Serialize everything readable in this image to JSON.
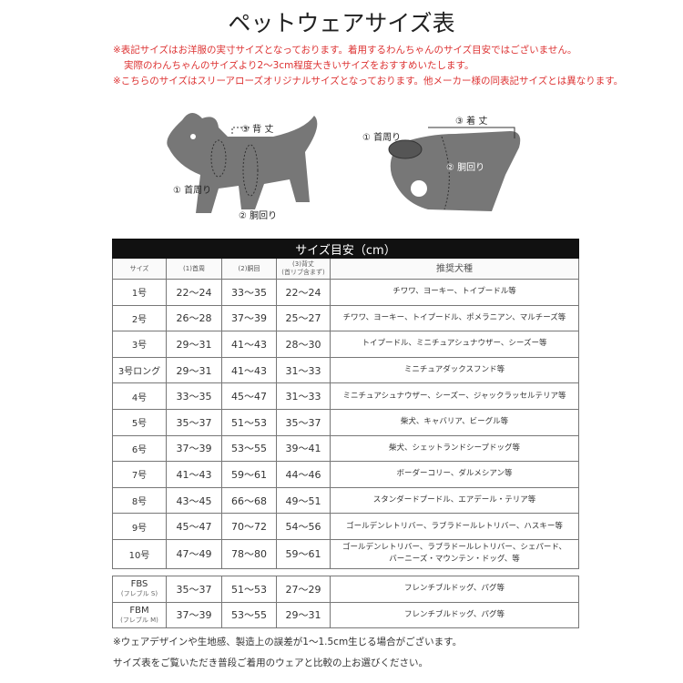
{
  "title": "ペットウェアサイズ表",
  "notes": [
    "※表記サイズはお洋服の実寸サイズとなっております。着用するわんちゃんのサイズ目安ではございません。",
    "実際のわんちゃんのサイズより2～3cm程度大きいサイズをおすすめいたします。",
    "※こちらのサイズはスリーアローズオリジナルサイズとなっております。他メーカー様の同表記サイズとは異なります。"
  ],
  "diagram": {
    "dog": {
      "back": "③ 背 丈",
      "neck": "① 首周り",
      "body": "② 胴回り"
    },
    "wear": {
      "length": "③ 着 丈",
      "neck": "① 首周り",
      "body": "② 胴回り"
    }
  },
  "table": {
    "caption": "サイズ目安（cm）",
    "headers": [
      "サイズ",
      "(1)首周",
      "(2)胴回",
      "(3)背丈",
      "推奨犬種"
    ],
    "header_sub": "(首リブ含まず)",
    "rows": [
      {
        "size": "1号",
        "neck": "22～24",
        "body": "33～35",
        "back": "22～24",
        "breeds": "チワワ、ヨーキー、トイプードル等"
      },
      {
        "size": "2号",
        "neck": "26～28",
        "body": "37～39",
        "back": "25～27",
        "breeds": "チワワ、ヨーキー、トイプードル、ポメラニアン、マルチーズ等"
      },
      {
        "size": "3号",
        "neck": "29～31",
        "body": "41～43",
        "back": "28～30",
        "breeds": "トイプードル、ミニチュアシュナウザー、シーズー等"
      },
      {
        "size": "3号ロング",
        "neck": "29～31",
        "body": "41～43",
        "back": "31～33",
        "breeds": "ミニチュアダックスフンド等"
      },
      {
        "size": "4号",
        "neck": "33～35",
        "body": "45～47",
        "back": "31～33",
        "breeds": "ミニチュアシュナウザー、シーズー、ジャックラッセルテリア等"
      },
      {
        "size": "5号",
        "neck": "35～37",
        "body": "51～53",
        "back": "35～37",
        "breeds": "柴犬、キャバリア、ビーグル等"
      },
      {
        "size": "6号",
        "neck": "37～39",
        "body": "53～55",
        "back": "39～41",
        "breeds": "柴犬、シェットランドシープドッグ等"
      },
      {
        "size": "7号",
        "neck": "41～43",
        "body": "59～61",
        "back": "44～46",
        "breeds": "ボーダーコリー、ダルメシアン等"
      },
      {
        "size": "8号",
        "neck": "43～45",
        "body": "66～68",
        "back": "49～51",
        "breeds": "スタンダードプードル、エアデール・テリア等"
      },
      {
        "size": "9号",
        "neck": "45～47",
        "body": "70～72",
        "back": "54～56",
        "breeds": "ゴールデンレトリバー、ラブラドールレトリバー、ハスキー等"
      },
      {
        "size": "10号",
        "neck": "47～49",
        "body": "78～80",
        "back": "59～61",
        "breeds": "ゴールデンレトリバー、ラブラドールレトリバー、シェパード、",
        "breeds2": "バーニーズ・マウンテン・ドッグ、等"
      }
    ],
    "fb_rows": [
      {
        "size": "FBS",
        "size_sub": "(フレブル S)",
        "neck": "35～37",
        "body": "51～53",
        "back": "27～29",
        "breeds": "フレンチブルドッグ、パグ等"
      },
      {
        "size": "FBM",
        "size_sub": "(フレブル M)",
        "neck": "37～39",
        "body": "53～55",
        "back": "29～31",
        "breeds": "フレンチブルドッグ、パグ等"
      }
    ]
  },
  "footnotes": [
    "※ウェアデザインや生地感、製造上の誤差が1～1.5cm生じる場合がございます。",
    "サイズ表をご覧いただき普段ご着用のウェアと比較の上お選びください。"
  ]
}
